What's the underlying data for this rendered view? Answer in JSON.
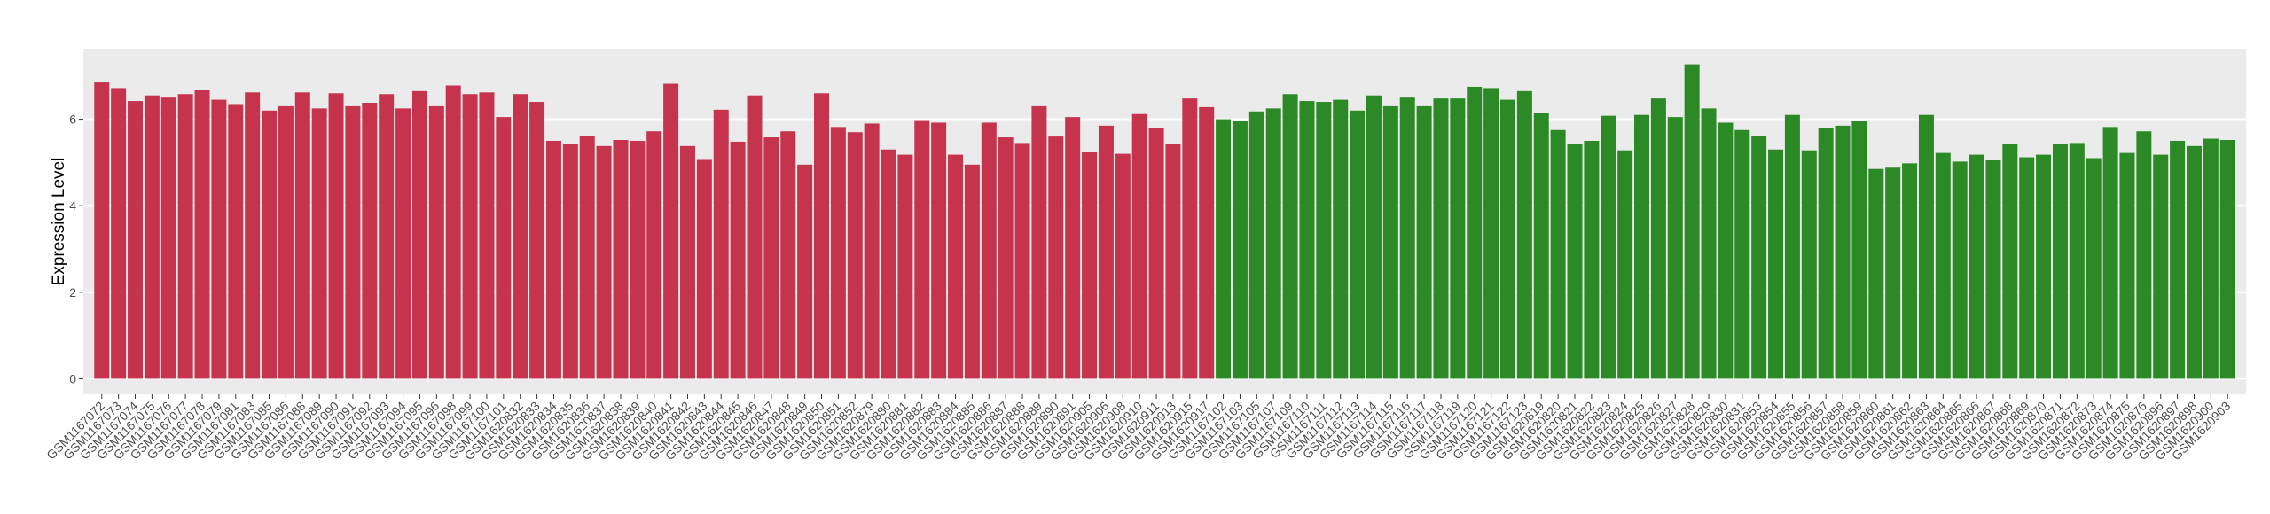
{
  "chart_data": {
    "type": "bar",
    "y_label": "Expression Level",
    "ylim": [
      -0.36,
      7.63
    ],
    "yticks": [
      0,
      2,
      4,
      6
    ],
    "grid": true,
    "series": [
      {
        "color": "#c5334d",
        "categories": [
          "GSM1167072",
          "GSM1167073",
          "GSM1167074",
          "GSM1167075",
          "GSM1167076",
          "GSM1167077",
          "GSM1167078",
          "GSM1167079",
          "GSM1167081",
          "GSM1167083",
          "GSM1167085",
          "GSM1167086",
          "GSM1167088",
          "GSM1167089",
          "GSM1167090",
          "GSM1167091",
          "GSM1167092",
          "GSM1167093",
          "GSM1167094",
          "GSM1167095",
          "GSM1167096",
          "GSM1167098",
          "GSM1167099",
          "GSM1167100",
          "GSM1167101",
          "GSM1620832",
          "GSM1620833",
          "GSM1620834",
          "GSM1620835",
          "GSM1620836",
          "GSM1620837",
          "GSM1620838",
          "GSM1620839",
          "GSM1620840",
          "GSM1620841",
          "GSM1620842",
          "GSM1620843",
          "GSM1620844",
          "GSM1620845",
          "GSM1620846",
          "GSM1620847",
          "GSM1620848",
          "GSM1620849",
          "GSM1620850",
          "GSM1620851",
          "GSM1620852",
          "GSM1620879",
          "GSM1620880",
          "GSM1620881",
          "GSM1620882",
          "GSM1620883",
          "GSM1620884",
          "GSM1620885",
          "GSM1620886",
          "GSM1620887",
          "GSM1620888",
          "GSM1620889",
          "GSM1620890",
          "GSM1620891",
          "GSM1620905",
          "GSM1620906",
          "GSM1620908",
          "GSM1620910",
          "GSM1620911",
          "GSM1620913",
          "GSM1620915",
          "GSM1620917"
        ],
        "values": [
          6.85,
          6.72,
          6.42,
          6.55,
          6.5,
          6.58,
          6.68,
          6.45,
          6.35,
          6.62,
          6.2,
          6.3,
          6.62,
          6.25,
          6.6,
          6.3,
          6.38,
          6.58,
          6.25,
          6.65,
          6.3,
          6.78,
          6.58,
          6.62,
          6.05,
          6.58,
          6.4,
          5.5,
          5.42,
          5.62,
          5.38,
          5.52,
          5.5,
          5.72,
          6.82,
          5.38,
          5.08,
          6.22,
          5.48,
          6.55,
          5.58,
          5.72,
          4.95,
          6.6,
          5.82,
          5.7,
          5.9,
          5.3,
          5.18,
          5.98,
          5.92,
          5.18,
          4.95,
          5.92,
          5.58,
          5.45,
          6.3,
          5.6,
          6.05,
          5.25,
          5.85,
          5.2,
          6.12,
          5.8,
          5.42,
          6.48,
          6.28
        ]
      },
      {
        "color": "#2b8a25",
        "categories": [
          "GSM1167102",
          "GSM1167103",
          "GSM1167105",
          "GSM1167107",
          "GSM1167109",
          "GSM1167110",
          "GSM1167111",
          "GSM1167112",
          "GSM1167113",
          "GSM1167114",
          "GSM1167115",
          "GSM1167116",
          "GSM1167117",
          "GSM1167118",
          "GSM1167119",
          "GSM1167120",
          "GSM1167121",
          "GSM1167122",
          "GSM1167123",
          "GSM1620819",
          "GSM1620820",
          "GSM1620821",
          "GSM1620822",
          "GSM1620823",
          "GSM1620824",
          "GSM1620825",
          "GSM1620826",
          "GSM1620827",
          "GSM1620828",
          "GSM1620829",
          "GSM1620830",
          "GSM1620831",
          "GSM1620853",
          "GSM1620854",
          "GSM1620855",
          "GSM1620856",
          "GSM1620857",
          "GSM1620858",
          "GSM1620859",
          "GSM1620860",
          "GSM1620861",
          "GSM1620862",
          "GSM1620863",
          "GSM1620864",
          "GSM1620865",
          "GSM1620866",
          "GSM1620867",
          "GSM1620868",
          "GSM1620869",
          "GSM1620870",
          "GSM1620871",
          "GSM1620872",
          "GSM1620873",
          "GSM1620874",
          "GSM1620875",
          "GSM1620876",
          "GSM1620896",
          "GSM1620897",
          "GSM1620898",
          "GSM1620900",
          "GSM1620903"
        ],
        "values": [
          6.0,
          5.95,
          6.18,
          6.25,
          6.58,
          6.42,
          6.4,
          6.45,
          6.2,
          6.55,
          6.3,
          6.5,
          6.3,
          6.48,
          6.48,
          6.75,
          6.72,
          6.45,
          6.65,
          6.15,
          5.75,
          5.42,
          5.5,
          6.08,
          5.28,
          6.1,
          6.48,
          6.05,
          7.27,
          6.25,
          5.92,
          5.75,
          5.62,
          5.3,
          6.1,
          5.28,
          5.8,
          5.85,
          5.95,
          4.85,
          4.88,
          4.98,
          6.1,
          5.22,
          5.02,
          5.18,
          5.05,
          5.42,
          5.12,
          5.18,
          5.42,
          5.45,
          5.1,
          5.82,
          5.22,
          5.72,
          5.18,
          5.5,
          5.38,
          5.55,
          5.52
        ]
      }
    ]
  }
}
